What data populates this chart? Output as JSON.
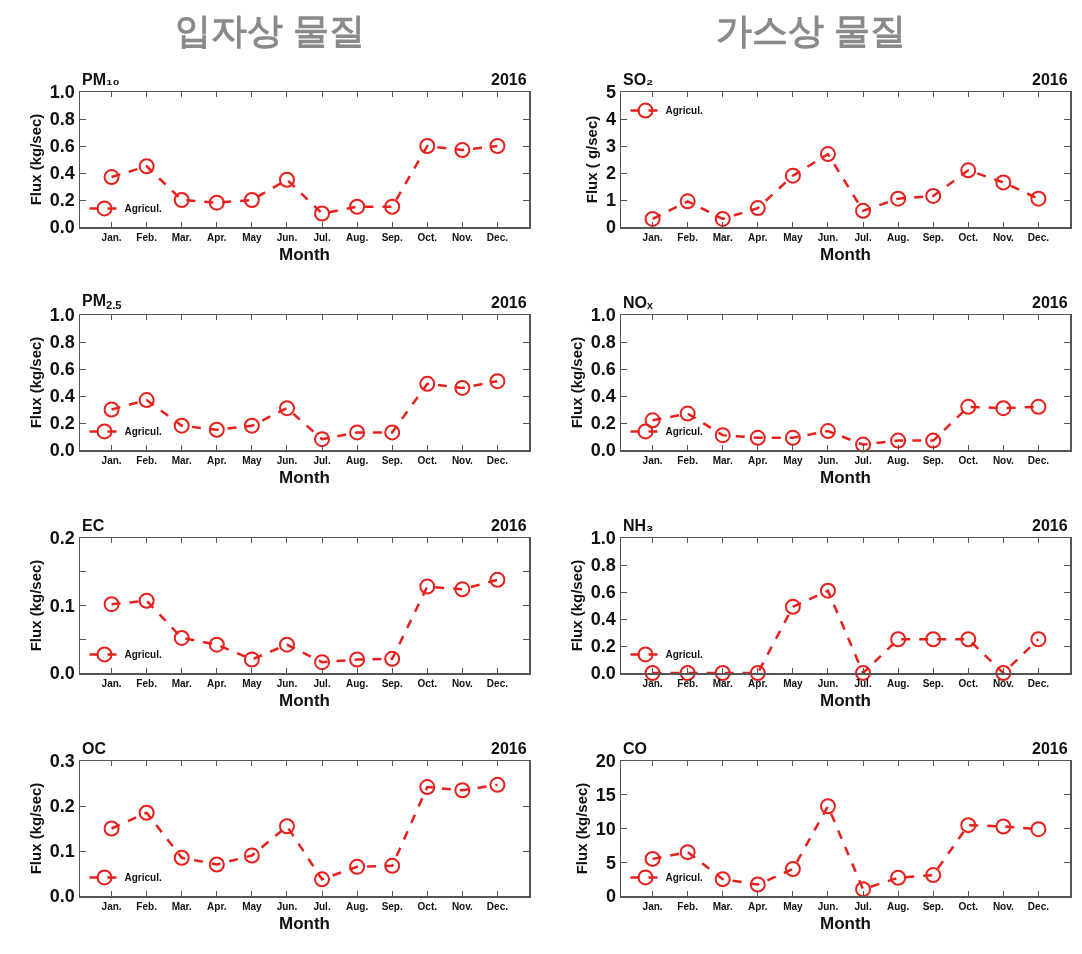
{
  "chart_data": [
    {
      "type": "other",
      "title": "입자상 물질"
    },
    {
      "type": "other",
      "title": "가스상 물질"
    },
    {
      "type": "line",
      "title": "PM₁₀",
      "annotations": [
        "2016"
      ],
      "xlabel": "Month",
      "ylabel": "Flux (kg/sec)",
      "categories": [
        "Jan.",
        "Feb.",
        "Mar.",
        "Apr.",
        "May",
        "Jun.",
        "Jul.",
        "Aug.",
        "Sep.",
        "Oct.",
        "Nov.",
        "Dec."
      ],
      "series": [
        {
          "name": "Agricul.",
          "color": "#e8201c",
          "values": [
            0.37,
            0.45,
            0.2,
            0.18,
            0.2,
            0.35,
            0.1,
            0.15,
            0.15,
            0.6,
            0.57,
            0.6
          ]
        }
      ],
      "ylim": [
        0,
        1
      ],
      "yticks": [
        {
          "value": 0,
          "label": "0.0"
        },
        {
          "value": 0.2,
          "label": "0.2"
        },
        {
          "value": 0.4,
          "label": "0.4"
        },
        {
          "value": 0.6,
          "label": "0.6"
        },
        {
          "value": 0.8,
          "label": "0.8"
        },
        {
          "value": 1,
          "label": "1.0"
        }
      ],
      "legend": "bottom left",
      "marker": "circle",
      "line_style": "dashed",
      "grid": false
    },
    {
      "type": "line",
      "title": "SO₂",
      "annotations": [
        "2016"
      ],
      "xlabel": "Month",
      "ylabel": "Flux ( g/sec)",
      "categories": [
        "Jan.",
        "Feb.",
        "Mar.",
        "Apr.",
        "May",
        "Jun.",
        "Jul.",
        "Aug.",
        "Sep.",
        "Oct.",
        "Nov.",
        "Dec."
      ],
      "series": [
        {
          "name": "Agricul.",
          "color": "#e8201c",
          "values": [
            0.3,
            0.95,
            0.3,
            0.7,
            1.9,
            2.7,
            0.6,
            1.05,
            1.15,
            2.1,
            1.65,
            1.05
          ]
        }
      ],
      "ylim": [
        0,
        5
      ],
      "yticks": [
        0,
        1,
        2,
        3,
        4,
        5
      ],
      "legend": "top left",
      "marker": "circle",
      "line_style": "dashed",
      "grid": false
    },
    {
      "type": "line",
      "title": "PM$_{2.5}$",
      "annotations": [
        "2016"
      ],
      "xlabel": "Month",
      "ylabel": "Flux (kg/sec)",
      "categories": [
        "Jan.",
        "Feb.",
        "Mar.",
        "Apr.",
        "May",
        "Jun.",
        "Jul.",
        "Aug.",
        "Sep.",
        "Oct.",
        "Nov.",
        "Dec."
      ],
      "series": [
        {
          "name": "Agricul.",
          "color": "#e8201c",
          "values": [
            0.3,
            0.37,
            0.18,
            0.15,
            0.18,
            0.31,
            0.08,
            0.13,
            0.13,
            0.49,
            0.46,
            0.51
          ]
        }
      ],
      "ylim": [
        0,
        1
      ],
      "yticks": [
        {
          "value": 0,
          "label": "0.0"
        },
        {
          "value": 0.2,
          "label": "0.2"
        },
        {
          "value": 0.4,
          "label": "0.4"
        },
        {
          "value": 0.6,
          "label": "0.6"
        },
        {
          "value": 0.8,
          "label": "0.8"
        },
        {
          "value": 1,
          "label": "1.0"
        }
      ],
      "legend": "bottom left",
      "marker": "circle",
      "line_style": "dashed",
      "grid": false
    },
    {
      "type": "line",
      "title": "NOₓ",
      "annotations": [
        "2016"
      ],
      "xlabel": "Month",
      "ylabel": "Flux (kg/sec)",
      "categories": [
        "Jan.",
        "Feb.",
        "Mar.",
        "Apr.",
        "May",
        "Jun.",
        "Jul.",
        "Aug.",
        "Sep.",
        "Oct.",
        "Nov.",
        "Dec."
      ],
      "series": [
        {
          "name": "Agricul.",
          "color": "#e8201c",
          "values": [
            0.22,
            0.27,
            0.11,
            0.09,
            0.09,
            0.14,
            0.04,
            0.07,
            0.07,
            0.32,
            0.31,
            0.32
          ]
        }
      ],
      "ylim": [
        0,
        1
      ],
      "yticks": [
        {
          "value": 0,
          "label": "0.0"
        },
        {
          "value": 0.2,
          "label": "0.2"
        },
        {
          "value": 0.4,
          "label": "0.4"
        },
        {
          "value": 0.6,
          "label": "0.6"
        },
        {
          "value": 0.8,
          "label": "0.8"
        },
        {
          "value": 1,
          "label": "1.0"
        }
      ],
      "legend": "bottom left",
      "marker": "circle",
      "line_style": "dashed",
      "grid": false
    },
    {
      "type": "line",
      "title": "EC",
      "annotations": [
        "2016"
      ],
      "xlabel": "Month",
      "ylabel": "Flux (kg/sec)",
      "categories": [
        "Jan.",
        "Feb.",
        "Mar.",
        "Apr.",
        "May",
        "Jun.",
        "Jul.",
        "Aug.",
        "Sep.",
        "Oct.",
        "Nov.",
        "Dec."
      ],
      "series": [
        {
          "name": "Agricul.",
          "color": "#e8201c",
          "values": [
            0.102,
            0.107,
            0.052,
            0.042,
            0.02,
            0.042,
            0.016,
            0.02,
            0.021,
            0.128,
            0.124,
            0.138
          ]
        }
      ],
      "ylim": [
        0,
        0.2
      ],
      "yticks": [
        {
          "value": 0,
          "label": "0.0"
        },
        {
          "value": 0.05,
          "label": null
        },
        {
          "value": 0.1,
          "label": "0.1"
        },
        {
          "value": 0.15,
          "label": null
        },
        {
          "value": 0.2,
          "label": "0.2"
        }
      ],
      "legend": "bottom left",
      "marker": "circle",
      "line_style": "dashed",
      "grid": false
    },
    {
      "type": "line",
      "title": "NH₃",
      "annotations": [
        "2016"
      ],
      "xlabel": "Month",
      "ylabel": "Flux (kg/sec)",
      "categories": [
        "Jan.",
        "Feb.",
        "Mar.",
        "Apr.",
        "May",
        "Jun.",
        "Jul.",
        "Aug.",
        "Sep.",
        "Oct.",
        "Nov.",
        "Dec."
      ],
      "series": [
        {
          "name": "Agricul.",
          "color": "#e8201c",
          "values": [
            0,
            0,
            0,
            0,
            0.49,
            0.61,
            0,
            0.25,
            0.25,
            0.25,
            0,
            0.25
          ]
        }
      ],
      "ylim": [
        0,
        1
      ],
      "yticks": [
        {
          "value": 0,
          "label": "0.0"
        },
        {
          "value": 0.2,
          "label": "0.2"
        },
        {
          "value": 0.4,
          "label": "0.4"
        },
        {
          "value": 0.6,
          "label": "0.6"
        },
        {
          "value": 0.8,
          "label": "0.8"
        },
        {
          "value": 1,
          "label": "1.0"
        }
      ],
      "legend": "bottom left",
      "marker": "circle",
      "line_style": "dashed",
      "grid": false
    },
    {
      "type": "line",
      "title": "OC",
      "annotations": [
        "2016"
      ],
      "xlabel": "Month",
      "ylabel": "Flux (kg/sec)",
      "categories": [
        "Jan.",
        "Feb.",
        "Mar.",
        "Apr.",
        "May",
        "Jun.",
        "Jul.",
        "Aug.",
        "Sep.",
        "Oct.",
        "Nov.",
        "Dec."
      ],
      "series": [
        {
          "name": "Agricul.",
          "color": "#e8201c",
          "values": [
            0.15,
            0.185,
            0.085,
            0.07,
            0.09,
            0.155,
            0.037,
            0.065,
            0.067,
            0.242,
            0.235,
            0.247
          ]
        }
      ],
      "ylim": [
        0,
        0.3
      ],
      "yticks": [
        {
          "value": 0,
          "label": "0.0"
        },
        {
          "value": 0.1,
          "label": "0.1"
        },
        {
          "value": 0.2,
          "label": "0.2"
        },
        {
          "value": 0.3,
          "label": "0.3"
        }
      ],
      "legend": "bottom left",
      "marker": "circle",
      "line_style": "dashed",
      "grid": false
    },
    {
      "type": "line",
      "title": "CO",
      "annotations": [
        "2016"
      ],
      "xlabel": "Month",
      "ylabel": "Flux (kg/sec)",
      "categories": [
        "Jan.",
        "Feb.",
        "Mar.",
        "Apr.",
        "May",
        "Jun.",
        "Jul.",
        "Aug.",
        "Sep.",
        "Oct.",
        "Nov.",
        "Dec."
      ],
      "series": [
        {
          "name": "Agricul.",
          "color": "#e8201c",
          "values": [
            5.5,
            6.5,
            2.5,
            1.7,
            4,
            13.3,
            1,
            2.7,
            3.1,
            10.5,
            10.3,
            9.9
          ]
        }
      ],
      "ylim": [
        0,
        20
      ],
      "yticks": [
        0,
        5,
        10,
        15,
        20
      ],
      "legend": "bottom left",
      "marker": "circle",
      "line_style": "dashed",
      "grid": false
    }
  ]
}
